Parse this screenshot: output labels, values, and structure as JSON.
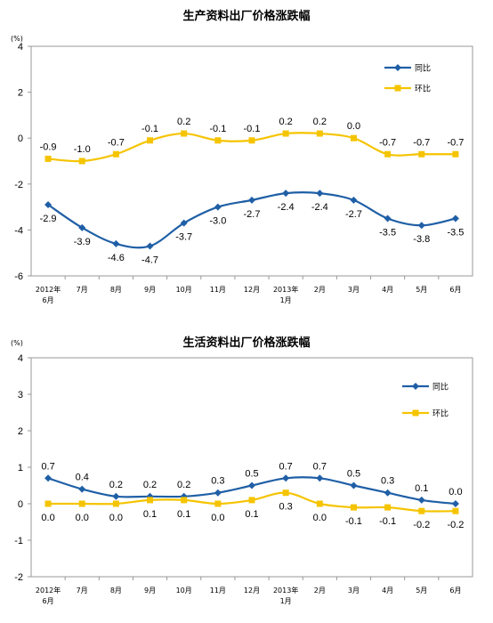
{
  "chart_data": [
    {
      "type": "line",
      "title": "生产资料出厂价格涨跌幅",
      "unit": "(%)",
      "categories": [
        "2012年\n6月",
        "7月",
        "8月",
        "9月",
        "10月",
        "11月",
        "12月",
        "2013年\n1月",
        "2月",
        "3月",
        "4月",
        "5月",
        "6月"
      ],
      "ylim": [
        -6,
        4
      ],
      "yticks": [
        -6,
        -4,
        -2,
        0,
        2,
        4
      ],
      "legend_position": "top-right",
      "grid": false,
      "series": [
        {
          "name": "同比",
          "color": "#1f5fa6",
          "marker": "diamond",
          "label_position": "below",
          "values": [
            -2.9,
            -3.9,
            -4.6,
            -4.7,
            -3.7,
            -3.0,
            -2.7,
            -2.4,
            -2.4,
            -2.7,
            -3.5,
            -3.8,
            -3.5
          ]
        },
        {
          "name": "环比",
          "color": "#f5c400",
          "marker": "square",
          "label_position": "above",
          "values": [
            -0.9,
            -1.0,
            -0.7,
            -0.1,
            0.2,
            -0.1,
            -0.1,
            0.2,
            0.2,
            0.0,
            -0.7,
            -0.7,
            -0.7
          ]
        }
      ]
    },
    {
      "type": "line",
      "title": "生活资料出厂价格涨跌幅",
      "unit": "(%)",
      "categories": [
        "2012年\n6月",
        "7月",
        "8月",
        "9月",
        "10月",
        "11月",
        "12月",
        "2013年\n1月",
        "2月",
        "3月",
        "4月",
        "5月",
        "6月"
      ],
      "ylim": [
        -2,
        4
      ],
      "yticks": [
        -2,
        -1,
        0,
        1,
        2,
        3,
        4
      ],
      "legend_position": "top-right",
      "grid": false,
      "series": [
        {
          "name": "同比",
          "color": "#1f5fa6",
          "marker": "diamond",
          "label_position": "above",
          "values": [
            0.7,
            0.4,
            0.2,
            0.2,
            0.2,
            0.3,
            0.5,
            0.7,
            0.7,
            0.5,
            0.3,
            0.1,
            0.0
          ]
        },
        {
          "name": "环比",
          "color": "#f5c400",
          "marker": "square",
          "label_position": "below",
          "values": [
            0.0,
            0.0,
            0.0,
            0.1,
            0.1,
            0.0,
            0.1,
            0.3,
            0.0,
            -0.1,
            -0.1,
            -0.2,
            -0.2
          ]
        }
      ]
    }
  ]
}
